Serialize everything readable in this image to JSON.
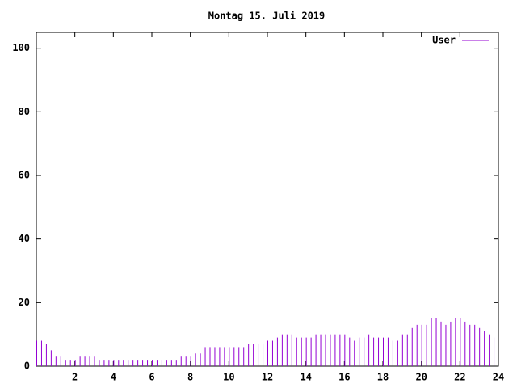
{
  "chart_data": {
    "type": "impulse",
    "title": "Montag 15. Juli 2019",
    "series": [
      {
        "name": "User",
        "color": "#9400d3",
        "x": [
          0,
          0.25,
          0.5,
          0.75,
          1,
          1.25,
          1.5,
          1.75,
          2,
          2.25,
          2.5,
          2.75,
          3,
          3.25,
          3.5,
          3.75,
          4,
          4.25,
          4.5,
          4.75,
          5,
          5.25,
          5.5,
          5.75,
          6,
          6.25,
          6.5,
          6.75,
          7,
          7.25,
          7.5,
          7.75,
          8,
          8.25,
          8.5,
          8.75,
          9,
          9.25,
          9.5,
          9.75,
          10,
          10.25,
          10.5,
          10.75,
          11,
          11.25,
          11.5,
          11.75,
          12,
          12.25,
          12.5,
          12.75,
          13,
          13.25,
          13.5,
          13.75,
          14,
          14.25,
          14.5,
          14.75,
          15,
          15.25,
          15.5,
          15.75,
          16,
          16.25,
          16.5,
          16.75,
          17,
          17.25,
          17.5,
          17.75,
          18,
          18.25,
          18.5,
          18.75,
          19,
          19.25,
          19.5,
          19.75,
          20,
          20.25,
          20.5,
          20.75,
          21,
          21.25,
          21.5,
          21.75,
          22,
          22.25,
          22.5,
          22.75,
          23,
          23.25,
          23.5,
          23.75
        ],
        "values": [
          8,
          8,
          7,
          5,
          3,
          3,
          2,
          2,
          2,
          3,
          3,
          3,
          3,
          2,
          2,
          2,
          2,
          2,
          2,
          2,
          2,
          2,
          2,
          2,
          2,
          2,
          2,
          2,
          2,
          2,
          3,
          3,
          3,
          4,
          4,
          6,
          6,
          6,
          6,
          6,
          6,
          6,
          6,
          6,
          7,
          7,
          7,
          7,
          8,
          8,
          9,
          10,
          10,
          10,
          9,
          9,
          9,
          9,
          10,
          10,
          10,
          10,
          10,
          10,
          10,
          9,
          8,
          9,
          9,
          10,
          9,
          9,
          9,
          9,
          8,
          8,
          10,
          10,
          12,
          13,
          13,
          13,
          15,
          15,
          14,
          13,
          14,
          15,
          15,
          14,
          13,
          13,
          12,
          11,
          10,
          9
        ]
      }
    ],
    "xlim": [
      0,
      24
    ],
    "xticks": [
      2,
      4,
      6,
      8,
      10,
      12,
      14,
      16,
      18,
      20,
      22,
      24
    ],
    "ylim": [
      0,
      105
    ],
    "yticks": [
      0,
      20,
      40,
      60,
      80,
      100
    ],
    "legend": "top-right"
  }
}
